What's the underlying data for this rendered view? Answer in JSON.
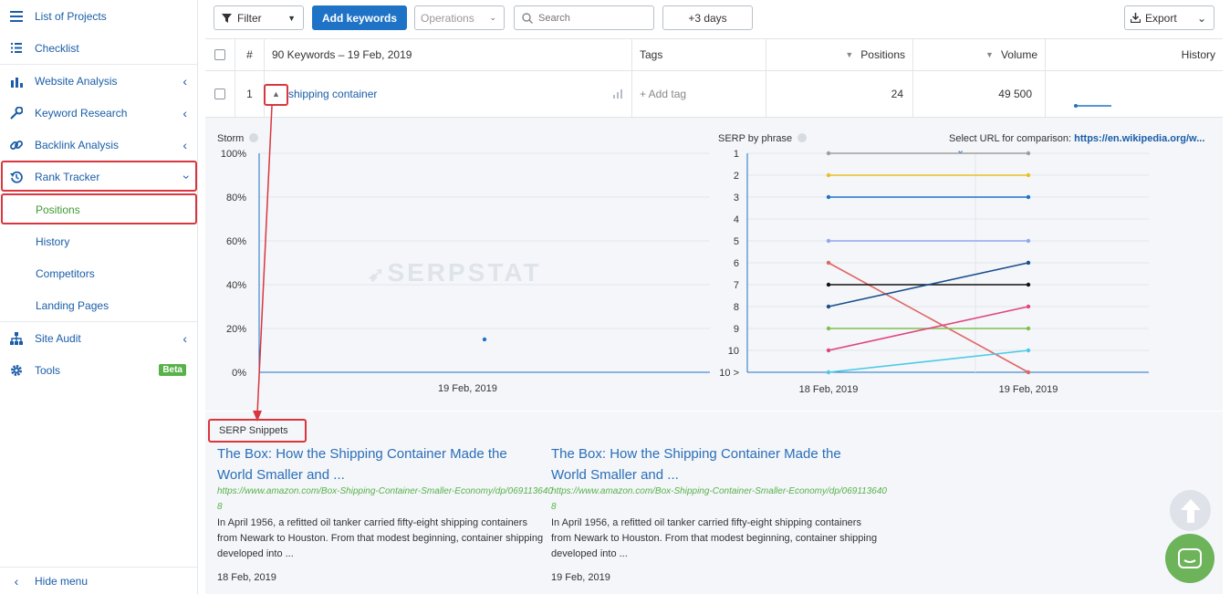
{
  "sidebar": {
    "items": [
      {
        "label": "List of Projects",
        "icon": "menu-icon"
      },
      {
        "label": "Checklist",
        "icon": "list-icon"
      },
      {
        "label": "Website Analysis",
        "icon": "analysis-icon"
      },
      {
        "label": "Keyword Research",
        "icon": "key-icon"
      },
      {
        "label": "Backlink Analysis",
        "icon": "link-icon"
      },
      {
        "label": "Rank Tracker",
        "icon": "history-icon"
      },
      {
        "label": "Site Audit",
        "icon": "sitemap-icon"
      },
      {
        "label": "Tools",
        "icon": "gear-icon",
        "badge": "Beta"
      }
    ],
    "rank_tracker_sub": [
      "Positions",
      "History",
      "Competitors",
      "Landing Pages"
    ],
    "hide_menu": "Hide menu"
  },
  "toolbar": {
    "filter": "Filter",
    "add_keywords": "Add keywords",
    "operations": "Operations",
    "search_placeholder": "Search",
    "days": "+3 days",
    "export": "Export"
  },
  "table": {
    "headers": {
      "num": "#",
      "keywords": "90 Keywords – 19 Feb, 2019",
      "tags": "Tags",
      "positions": "Positions",
      "volume": "Volume",
      "history": "History"
    },
    "row": {
      "num": "1",
      "keyword": "shipping container",
      "add_tag": "+ Add tag",
      "position": "24",
      "volume": "49 500"
    }
  },
  "storm": {
    "title": "Storm",
    "watermark": "SERPSTAT",
    "y_ticks": [
      "100%",
      "80%",
      "60%",
      "40%",
      "20%",
      "0%"
    ],
    "x_label": "19 Feb, 2019"
  },
  "serp_phrase": {
    "title": "SERP by phrase",
    "compare_label": "Select URL for comparison:",
    "compare_url": "https://en.wikipedia.org/w...",
    "y_ticks": [
      "1",
      "2",
      "3",
      "4",
      "5",
      "6",
      "7",
      "8",
      "9",
      "10",
      "10 >"
    ],
    "x_ticks": [
      "18 Feb, 2019",
      "19 Feb, 2019"
    ]
  },
  "snippets": {
    "heading": "SERP Snippets",
    "items": [
      {
        "title": "The Box: How the Shipping Container Made the World Smaller and ...",
        "url": "https://www.amazon.com/Box-Shipping-Container-Smaller-Economy/dp/0691136408",
        "desc": "In April 1956, a refitted oil tanker carried fifty-eight shipping containers from Newark to Houston. From that modest beginning, container shipping developed into ...",
        "date": "18 Feb, 2019"
      },
      {
        "title": "The Box: How the Shipping Container Made the World Smaller and ...",
        "url": "https://www.amazon.com/Box-Shipping-Container-Smaller-Economy/dp/0691136408",
        "desc": "In April 1956, a refitted oil tanker carried fifty-eight shipping containers from Newark to Houston. From that modest beginning, container shipping developed into ...",
        "date": "19 Feb, 2019"
      }
    ]
  },
  "chart_data": [
    {
      "type": "scatter",
      "title": "Storm",
      "x": [
        "19 Feb, 2019"
      ],
      "y": [
        15
      ],
      "ylim": [
        0,
        100
      ],
      "ylabel": ""
    },
    {
      "type": "line",
      "title": "SERP by phrase",
      "x": [
        "18 Feb, 2019",
        "19 Feb, 2019"
      ],
      "y_reversed": true,
      "series": [
        {
          "color": "#9e9e9e",
          "values": [
            1,
            1
          ]
        },
        {
          "color": "#e6c029",
          "values": [
            2,
            2
          ]
        },
        {
          "color": "#1f73c7",
          "values": [
            3,
            3
          ]
        },
        {
          "color": "#8fa8f0",
          "values": [
            5,
            5
          ]
        },
        {
          "color": "#e06666",
          "values": [
            6,
            11
          ]
        },
        {
          "color": "#111111",
          "values": [
            7,
            7
          ]
        },
        {
          "color": "#1a4f8a",
          "values": [
            8,
            6
          ]
        },
        {
          "color": "#7dc04f",
          "values": [
            9,
            9
          ]
        },
        {
          "color": "#e0457e",
          "values": [
            10,
            8
          ]
        },
        {
          "color": "#4cc9e8",
          "values": [
            11,
            10
          ]
        }
      ]
    }
  ],
  "colors": {
    "accent": "#1f73c7",
    "link": "#1a5da8",
    "active": "#57b24a",
    "annotation": "#d9363e"
  }
}
